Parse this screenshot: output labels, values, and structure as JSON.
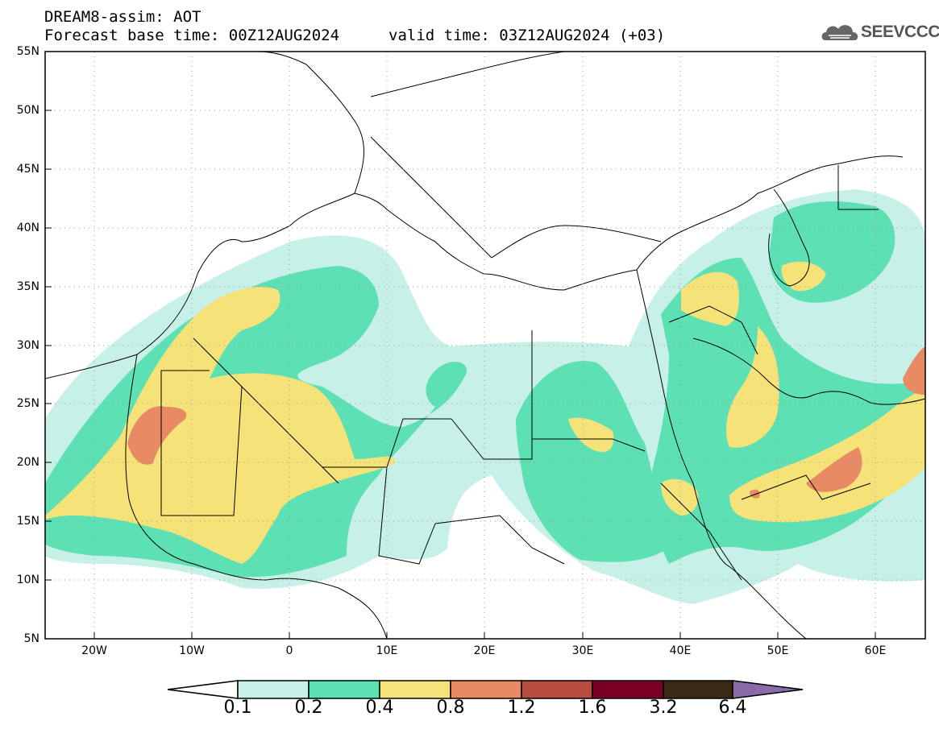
{
  "title": {
    "line1": "DREAM8-assim: AOT",
    "line2": "Forecast base time: 00Z12AUG2024",
    "valid": "valid time: 03Z12AUG2024 (+03)"
  },
  "logo": {
    "text": "SEEVCCC",
    "icon": "cloud-icon"
  },
  "axes": {
    "lat_labels": [
      "55N",
      "50N",
      "45N",
      "40N",
      "35N",
      "30N",
      "25N",
      "20N",
      "15N",
      "10N",
      "5N"
    ],
    "lon_labels": [
      "20W",
      "10W",
      "0",
      "10E",
      "20E",
      "30E",
      "40E",
      "50E",
      "60E"
    ],
    "lat_range": [
      5,
      55
    ],
    "lon_range": [
      -25,
      65
    ]
  },
  "colorbar": {
    "labels": [
      "0.1",
      "0.2",
      "0.4",
      "0.8",
      "1.2",
      "1.6",
      "3.2",
      "6.4"
    ],
    "colors": [
      "#ffffff",
      "#c7f0e8",
      "#5de0b4",
      "#f5e278",
      "#e88a64",
      "#b84c3e",
      "#7a0026",
      "#3a2a14",
      "#8a6aa8"
    ]
  },
  "colors": {
    "level1": "#c7f0e8",
    "level2": "#5de0b4",
    "level3": "#f5e278",
    "level4": "#e88a64",
    "coast": "#000000"
  }
}
